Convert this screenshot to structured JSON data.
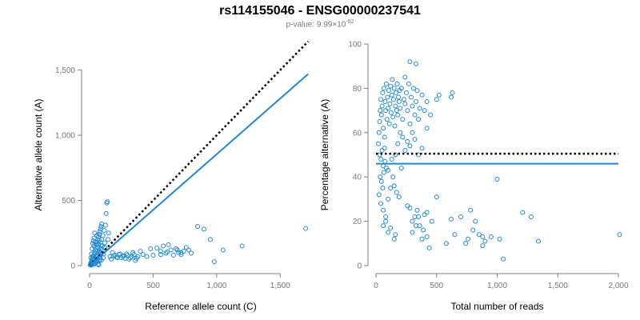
{
  "title": "rs114155046 - ENSG00000237541",
  "subtitle": {
    "prefix": "p-value: 9.99×10",
    "exponent": "-92"
  },
  "colors": {
    "points": "#1f88d6",
    "fit_line": "#1f88d6",
    "reference_line": "#000000",
    "axis": "#7f7f7f"
  },
  "chart_data": [
    {
      "type": "scatter",
      "title": "",
      "xlabel": "Reference allele count (C)",
      "ylabel": "Alternative allele count (A)",
      "xlim": [
        0,
        1750
      ],
      "ylim": [
        0,
        1700
      ],
      "xticks": [
        0,
        500,
        1000,
        1500
      ],
      "xtick_labels": [
        "0",
        "500",
        "1,000",
        "1,500"
      ],
      "yticks": [
        0,
        500,
        1000,
        1500
      ],
      "ytick_labels": [
        "0",
        "500",
        "1,000",
        "1,500"
      ],
      "grid": false,
      "lines": [
        {
          "style": "dotted",
          "color": "#000000",
          "from": [
            0,
            0
          ],
          "to": [
            1720,
            1720
          ]
        },
        {
          "style": "solid",
          "color": "#1f88d6",
          "from": [
            0,
            0
          ],
          "to": [
            1720,
            1470
          ]
        }
      ],
      "points": [
        [
          5,
          5
        ],
        [
          8,
          12
        ],
        [
          10,
          20
        ],
        [
          12,
          3
        ],
        [
          15,
          30
        ],
        [
          18,
          8
        ],
        [
          20,
          40
        ],
        [
          22,
          15
        ],
        [
          25,
          55
        ],
        [
          28,
          25
        ],
        [
          30,
          70
        ],
        [
          32,
          10
        ],
        [
          35,
          85
        ],
        [
          38,
          45
        ],
        [
          40,
          100
        ],
        [
          42,
          20
        ],
        [
          45,
          120
        ],
        [
          48,
          60
        ],
        [
          50,
          140
        ],
        [
          52,
          35
        ],
        [
          55,
          160
        ],
        [
          58,
          80
        ],
        [
          60,
          180
        ],
        [
          62,
          50
        ],
        [
          65,
          200
        ],
        [
          68,
          95
        ],
        [
          70,
          220
        ],
        [
          72,
          5
        ],
        [
          75,
          240
        ],
        [
          78,
          110
        ],
        [
          80,
          260
        ],
        [
          82,
          65
        ],
        [
          85,
          280
        ],
        [
          88,
          130
        ],
        [
          90,
          300
        ],
        [
          92,
          40
        ],
        [
          95,
          320
        ],
        [
          100,
          150
        ],
        [
          105,
          230
        ],
        [
          110,
          90
        ],
        [
          115,
          270
        ],
        [
          120,
          175
        ],
        [
          125,
          310
        ],
        [
          130,
          400
        ],
        [
          135,
          480
        ],
        [
          140,
          490
        ],
        [
          145,
          200
        ],
        [
          150,
          250
        ],
        [
          10,
          60
        ],
        [
          15,
          90
        ],
        [
          20,
          130
        ],
        [
          25,
          170
        ],
        [
          30,
          190
        ],
        [
          35,
          210
        ],
        [
          40,
          250
        ],
        [
          45,
          15
        ],
        [
          50,
          75
        ],
        [
          55,
          110
        ],
        [
          60,
          30
        ],
        [
          65,
          140
        ],
        [
          70,
          165
        ],
        [
          75,
          190
        ],
        [
          80,
          50
        ],
        [
          85,
          100
        ],
        [
          90,
          155
        ],
        [
          95,
          200
        ],
        [
          12,
          25
        ],
        [
          18,
          45
        ],
        [
          24,
          70
        ],
        [
          33,
          150
        ],
        [
          44,
          180
        ],
        [
          57,
          230
        ],
        [
          66,
          12
        ],
        [
          77,
          35
        ],
        [
          88,
          88
        ],
        [
          99,
          120
        ],
        [
          107,
          60
        ],
        [
          118,
          140
        ],
        [
          160,
          70
        ],
        [
          170,
          50
        ],
        [
          180,
          100
        ],
        [
          200,
          80
        ],
        [
          220,
          60
        ],
        [
          240,
          90
        ],
        [
          260,
          70
        ],
        [
          280,
          55
        ],
        [
          300,
          80
        ],
        [
          320,
          60
        ],
        [
          340,
          100
        ],
        [
          360,
          40
        ],
        [
          380,
          70
        ],
        [
          400,
          110
        ],
        [
          420,
          85
        ],
        [
          450,
          70
        ],
        [
          480,
          130
        ],
        [
          500,
          80
        ],
        [
          530,
          135
        ],
        [
          560,
          110
        ],
        [
          580,
          150
        ],
        [
          600,
          95
        ],
        [
          620,
          160
        ],
        [
          640,
          120
        ],
        [
          660,
          80
        ],
        [
          680,
          130
        ],
        [
          700,
          100
        ],
        [
          720,
          85
        ],
        [
          740,
          110
        ],
        [
          760,
          140
        ],
        [
          780,
          120
        ],
        [
          800,
          95
        ],
        [
          850,
          300
        ],
        [
          900,
          280
        ],
        [
          950,
          200
        ],
        [
          980,
          30
        ],
        [
          1050,
          120
        ],
        [
          1200,
          150
        ],
        [
          1700,
          285
        ],
        [
          190,
          75
        ],
        [
          210,
          65
        ],
        [
          230,
          85
        ],
        [
          250,
          60
        ],
        [
          270,
          75
        ],
        [
          290,
          90
        ],
        [
          310,
          50
        ],
        [
          330,
          70
        ],
        [
          350,
          85
        ],
        [
          370,
          55
        ],
        [
          560,
          85
        ],
        [
          610,
          105
        ],
        [
          690,
          120
        ],
        [
          720,
          100
        ]
      ]
    },
    {
      "type": "scatter",
      "title": "",
      "xlabel": "Total number of reads",
      "ylabel": "Percentage alternative (A)",
      "xlim": [
        0,
        2000
      ],
      "ylim": [
        0,
        100
      ],
      "xticks": [
        0,
        500,
        1000,
        1500,
        2000
      ],
      "xtick_labels": [
        "0",
        "500",
        "1,000",
        "1,500",
        "2,000"
      ],
      "yticks": [
        0,
        20,
        40,
        60,
        80,
        100
      ],
      "ytick_labels": [
        "0",
        "20",
        "40",
        "60",
        "80",
        "100"
      ],
      "grid": false,
      "lines": [
        {
          "style": "dotted",
          "color": "#000000",
          "from": [
            0,
            50.5
          ],
          "to": [
            2000,
            50.5
          ]
        },
        {
          "style": "solid",
          "color": "#1f88d6",
          "from": [
            0,
            46
          ],
          "to": [
            2000,
            46
          ]
        }
      ],
      "points": [
        [
          20,
          55
        ],
        [
          25,
          60
        ],
        [
          30,
          65
        ],
        [
          35,
          70
        ],
        [
          40,
          75
        ],
        [
          45,
          68
        ],
        [
          50,
          72
        ],
        [
          55,
          78
        ],
        [
          60,
          62
        ],
        [
          65,
          80
        ],
        [
          70,
          58
        ],
        [
          75,
          74
        ],
        [
          80,
          70
        ],
        [
          85,
          82
        ],
        [
          90,
          66
        ],
        [
          95,
          76
        ],
        [
          100,
          71
        ],
        [
          105,
          79
        ],
        [
          110,
          64
        ],
        [
          115,
          73
        ],
        [
          120,
          81
        ],
        [
          125,
          69
        ],
        [
          130,
          77
        ],
        [
          135,
          84
        ],
        [
          140,
          67
        ],
        [
          145,
          75
        ],
        [
          150,
          80
        ],
        [
          155,
          63
        ],
        [
          160,
          72
        ],
        [
          165,
          78
        ],
        [
          170,
          70
        ],
        [
          175,
          82
        ],
        [
          180,
          68
        ],
        [
          185,
          76
        ],
        [
          190,
          74
        ],
        [
          195,
          79
        ],
        [
          200,
          71
        ],
        [
          210,
          80
        ],
        [
          220,
          66
        ],
        [
          230,
          75
        ],
        [
          240,
          73
        ],
        [
          250,
          78
        ],
        [
          260,
          70
        ],
        [
          270,
          82
        ],
        [
          280,
          64
        ],
        [
          290,
          76
        ],
        [
          300,
          72
        ],
        [
          310,
          80
        ],
        [
          320,
          68
        ],
        [
          330,
          74
        ],
        [
          340,
          79
        ],
        [
          350,
          66
        ],
        [
          360,
          71
        ],
        [
          380,
          77
        ],
        [
          400,
          70
        ],
        [
          420,
          74
        ],
        [
          450,
          68
        ],
        [
          500,
          75
        ],
        [
          520,
          77
        ],
        [
          240,
          85
        ],
        [
          280,
          92
        ],
        [
          330,
          91
        ],
        [
          420,
          62
        ],
        [
          620,
          76
        ],
        [
          630,
          78
        ],
        [
          30,
          50
        ],
        [
          40,
          48
        ],
        [
          50,
          52
        ],
        [
          60,
          45
        ],
        [
          70,
          53
        ],
        [
          35,
          40
        ],
        [
          45,
          38
        ],
        [
          55,
          35
        ],
        [
          65,
          42
        ],
        [
          75,
          47
        ],
        [
          85,
          44
        ],
        [
          25,
          32
        ],
        [
          40,
          28
        ],
        [
          60,
          25
        ],
        [
          80,
          22
        ],
        [
          100,
          30
        ],
        [
          120,
          35
        ],
        [
          140,
          40
        ],
        [
          160,
          50
        ],
        [
          180,
          55
        ],
        [
          200,
          60
        ],
        [
          220,
          58
        ],
        [
          240,
          52
        ],
        [
          260,
          56
        ],
        [
          280,
          54
        ],
        [
          300,
          60
        ],
        [
          320,
          57
        ],
        [
          350,
          50
        ],
        [
          380,
          53
        ],
        [
          100,
          43
        ],
        [
          130,
          48
        ],
        [
          150,
          36
        ],
        [
          170,
          33
        ],
        [
          190,
          31
        ],
        [
          210,
          44
        ],
        [
          60,
          18
        ],
        [
          80,
          20
        ],
        [
          100,
          15
        ],
        [
          120,
          17
        ],
        [
          150,
          12
        ],
        [
          160,
          14
        ],
        [
          260,
          27
        ],
        [
          280,
          26
        ],
        [
          300,
          20
        ],
        [
          320,
          22
        ],
        [
          340,
          25
        ],
        [
          360,
          18
        ],
        [
          380,
          12
        ],
        [
          400,
          23
        ],
        [
          420,
          24
        ],
        [
          440,
          8
        ],
        [
          460,
          20
        ],
        [
          500,
          31
        ],
        [
          580,
          10
        ],
        [
          620,
          21
        ],
        [
          650,
          14
        ],
        [
          700,
          22
        ],
        [
          740,
          10
        ],
        [
          760,
          12
        ],
        [
          780,
          25
        ],
        [
          800,
          16
        ],
        [
          820,
          20
        ],
        [
          850,
          14
        ],
        [
          880,
          13
        ],
        [
          900,
          11
        ],
        [
          950,
          13
        ],
        [
          1000,
          39
        ],
        [
          1020,
          12
        ],
        [
          1050,
          3
        ],
        [
          1210,
          24
        ],
        [
          1280,
          22
        ],
        [
          1340,
          11
        ],
        [
          2010,
          14
        ],
        [
          300,
          15
        ],
        [
          330,
          18
        ],
        [
          350,
          22
        ],
        [
          390,
          16
        ],
        [
          420,
          13
        ],
        [
          880,
          9
        ]
      ]
    }
  ]
}
